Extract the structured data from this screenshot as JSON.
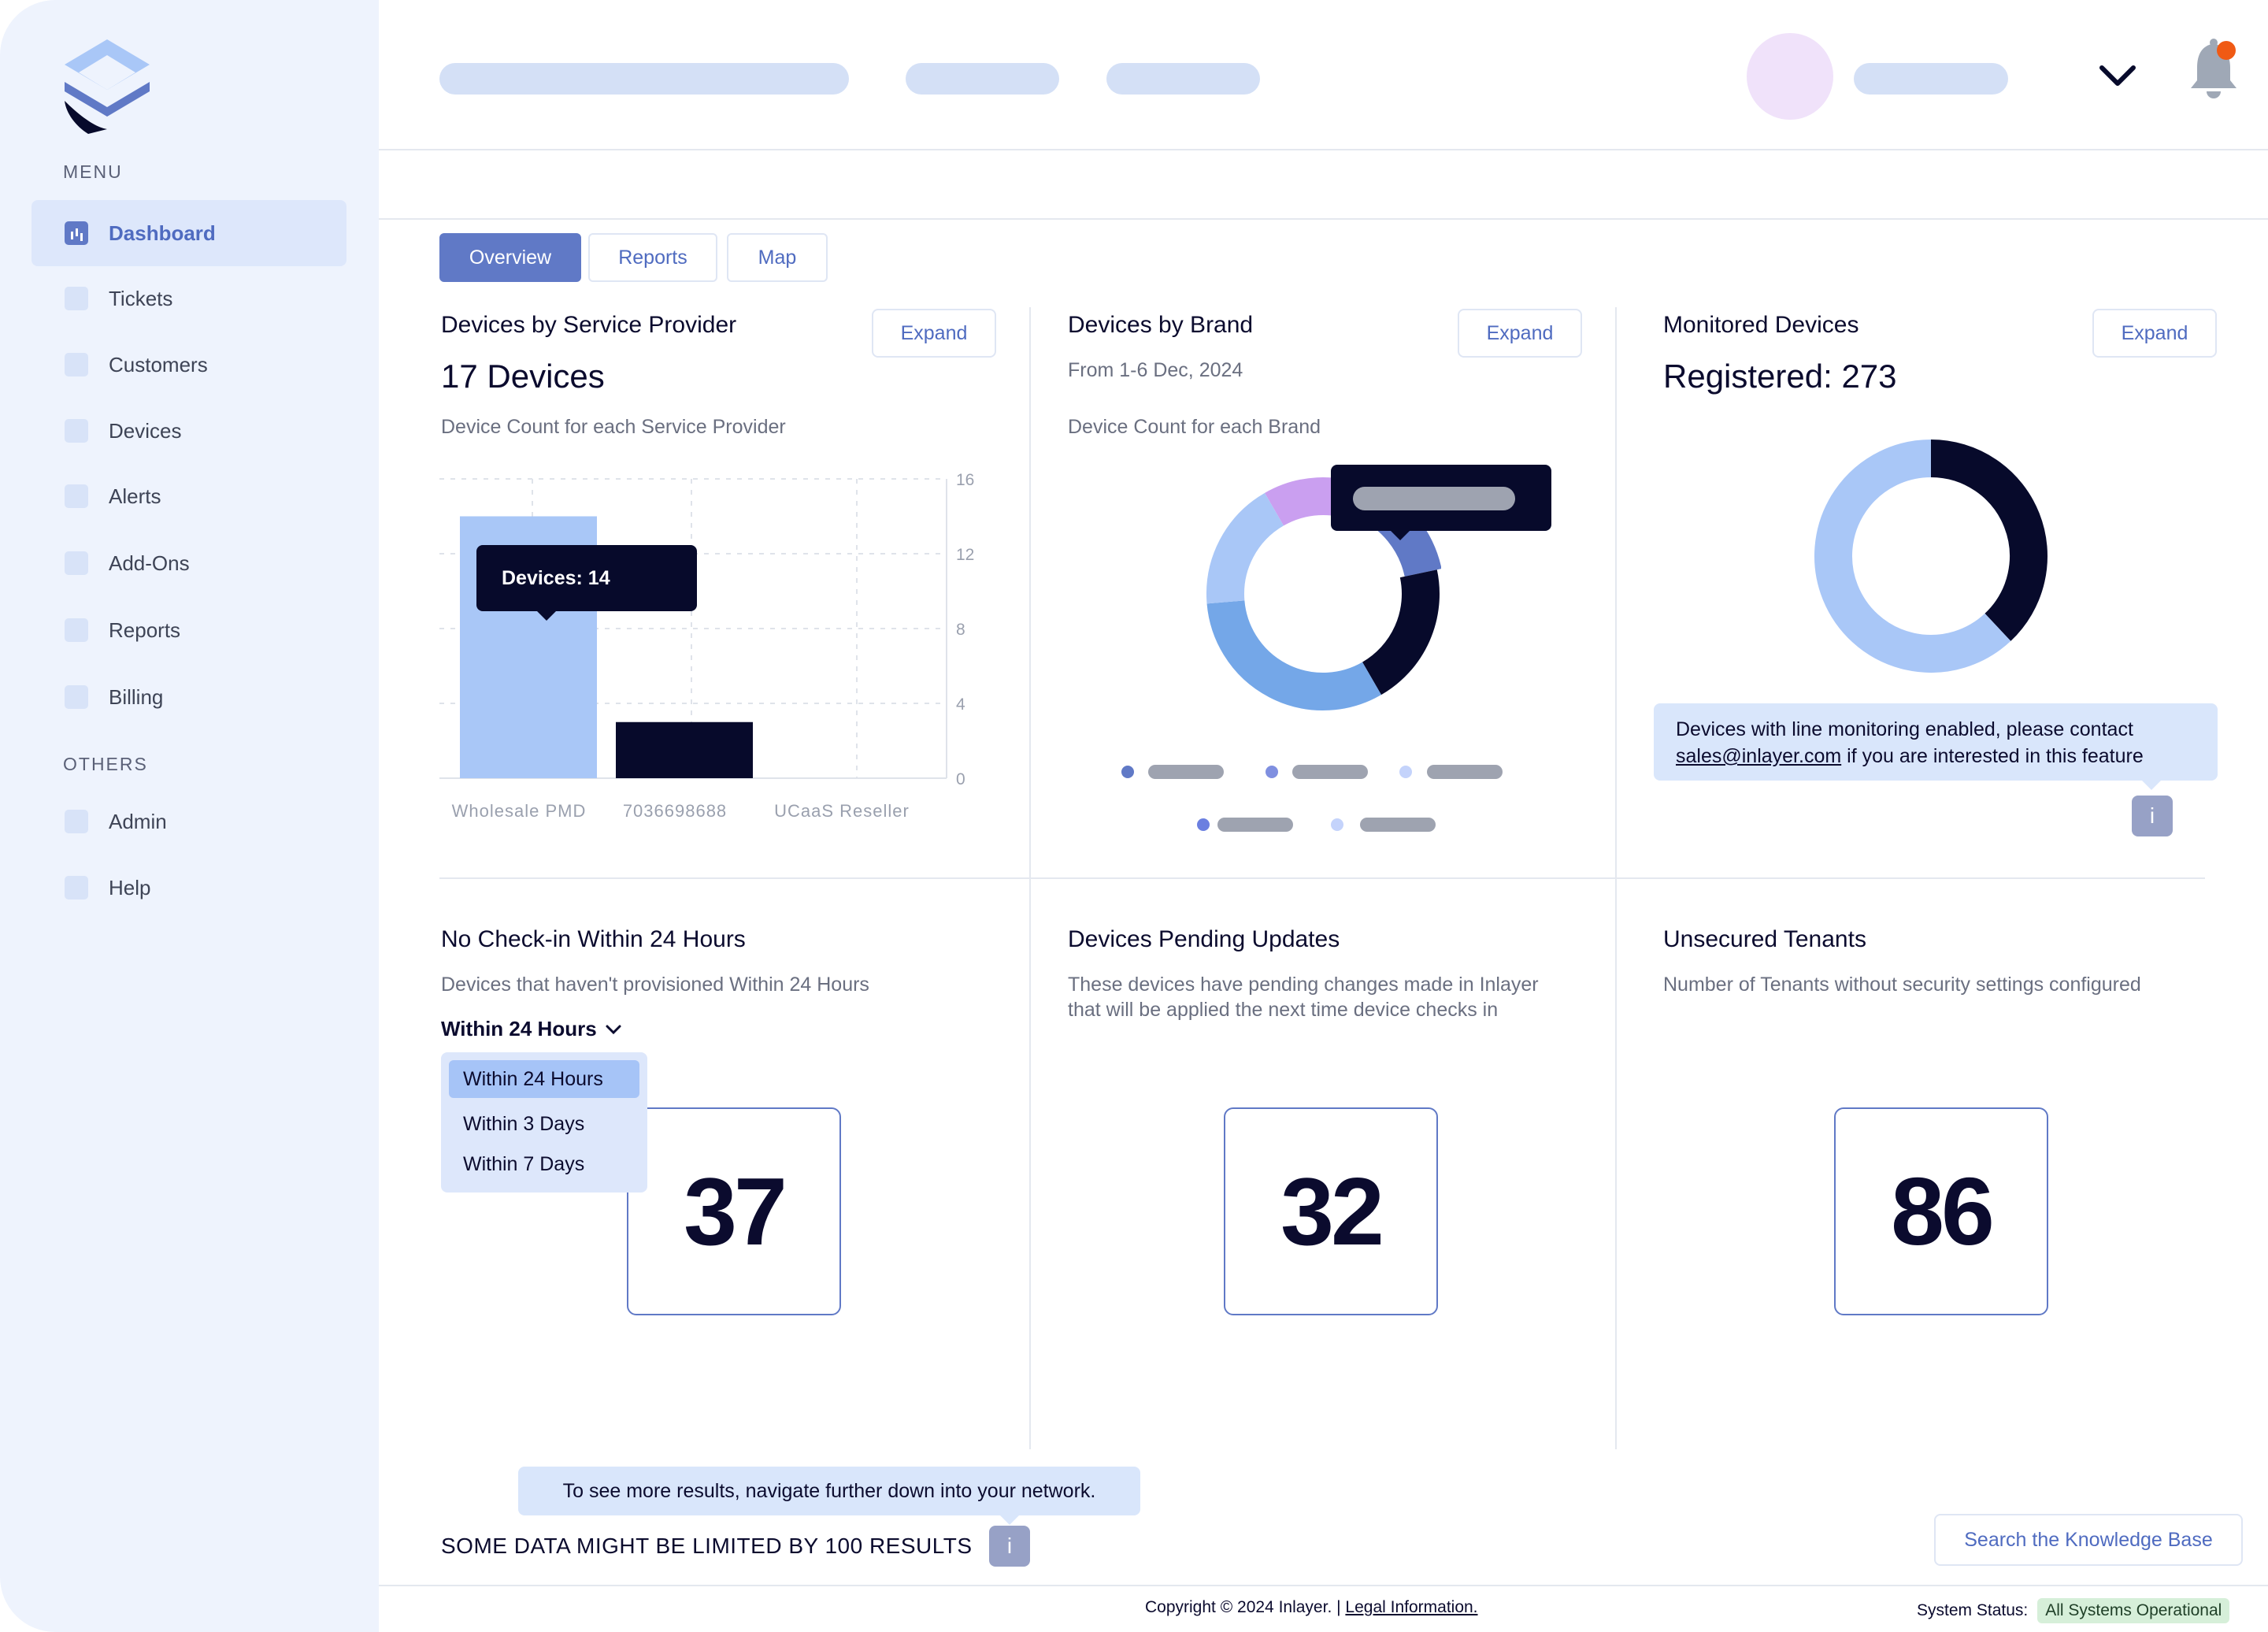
{
  "sidebar": {
    "menu_label": "MENU",
    "others_label": "OTHERS",
    "items": [
      {
        "label": "Dashboard",
        "icon": "chart-bar-icon"
      },
      {
        "label": "Tickets",
        "icon": "ticket-icon"
      },
      {
        "label": "Customers",
        "icon": "users-icon"
      },
      {
        "label": "Devices",
        "icon": "device-icon"
      },
      {
        "label": "Alerts",
        "icon": "alert-icon"
      },
      {
        "label": "Add-Ons",
        "icon": "plus-icon"
      },
      {
        "label": "Reports",
        "icon": "report-icon"
      },
      {
        "label": "Billing",
        "icon": "billing-icon"
      }
    ],
    "others": [
      {
        "label": "Admin",
        "icon": "admin-icon"
      },
      {
        "label": "Help",
        "icon": "help-icon"
      }
    ]
  },
  "tabs": [
    {
      "label": "Overview",
      "active": true
    },
    {
      "label": "Reports",
      "active": false
    },
    {
      "label": "Map",
      "active": false
    }
  ],
  "cards": {
    "service_provider": {
      "title": "Devices by Service Provider",
      "headline": "17 Devices",
      "subtitle": "Device Count for each Service Provider",
      "expand": "Expand",
      "tooltip": "Devices: 14"
    },
    "brand": {
      "title": "Devices by Brand",
      "date_range": "From 1-6 Dec, 2024",
      "subtitle": "Device Count for each Brand",
      "expand": "Expand"
    },
    "monitored": {
      "title": "Monitored Devices",
      "headline": "Registered: 273",
      "expand": "Expand",
      "note_line1": "Devices with line monitoring enabled, please contact",
      "note_email": "sales@inlayer.com",
      "note_line2_rest": " if you are interested in this feature",
      "info": "i"
    },
    "no_checkin": {
      "title": "No Check-in Within 24 Hours",
      "subtitle": "Devices that haven't provisioned Within 24 Hours",
      "filter_selected": "Within 24 Hours",
      "filter_options": [
        "Within 24 Hours",
        "Within 3 Days",
        "Within 7 Days"
      ],
      "value": "37"
    },
    "pending": {
      "title": "Devices Pending Updates",
      "subtitle_line1": "These devices have pending changes made in Inlayer",
      "subtitle_line2": "that will be applied the next time device checks in",
      "value": "32"
    },
    "unsecured": {
      "title": "Unsecured Tenants",
      "subtitle": "Number of Tenants without security settings configured",
      "value": "86"
    }
  },
  "chart_data": [
    {
      "type": "bar",
      "categories": [
        "Wholesale PMD",
        "7036698688",
        "UCaaS Reseller"
      ],
      "values": [
        14,
        3,
        0
      ],
      "ylim": [
        0,
        16
      ],
      "yticks": [
        "16",
        "12",
        "8",
        "4",
        "0"
      ],
      "grid": true,
      "colors": [
        "#a9c7f7",
        "#070a2b"
      ]
    },
    {
      "type": "pie",
      "values": [
        15,
        15,
        20,
        32,
        18
      ],
      "colors": [
        "#ca9ff0",
        "#6079c6",
        "#070a2b",
        "#74a7e8",
        "#a9c7f7"
      ]
    },
    {
      "type": "pie",
      "values": [
        38,
        62
      ],
      "colors": [
        "#070a2b",
        "#a9c7f7"
      ]
    }
  ],
  "footer": {
    "results_tooltip": "To see more results, navigate further down into your network.",
    "limit_note": "SOME DATA MIGHT BE LIMITED BY 100 RESULTS",
    "info": "i",
    "kb_button": "Search the Knowledge Base",
    "copyright": "Copyright © 2024 Inlayer. | ",
    "legal": "Legal Information.",
    "status_label": "System Status:",
    "status_value": "All Systems Operational"
  },
  "colors": {
    "accent": "#6079c6",
    "dark": "#070a2b",
    "notification": "#f05a14",
    "status_ok": "#d6efd9"
  }
}
